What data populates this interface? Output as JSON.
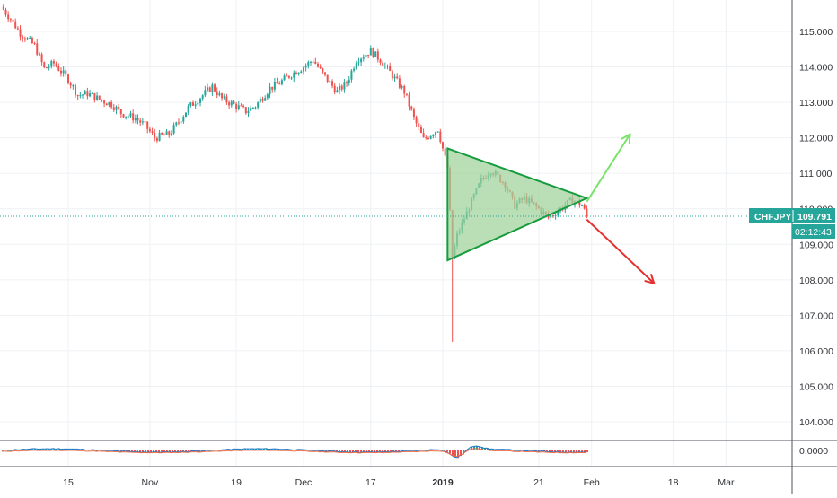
{
  "symbol_label": "CHFJPY",
  "price_label": "109.791",
  "countdown_label": "02:12:43",
  "macd_label": "0.0000",
  "colors": {
    "up": "#26a69a",
    "down": "#ef5350",
    "triangle_fill": "#9fd39a",
    "triangle_stroke": "#169c3e",
    "arrow_up": "#7be36b",
    "arrow_down": "#e3312e",
    "tag_bg": "#26a69a",
    "price_line": "#26a69a",
    "grid": "#eef1f4",
    "axis_text": "#2f3135",
    "macd_line": "#1f78c8",
    "signal_line": "#ef6c45"
  },
  "chart_data": {
    "type": "candlestick",
    "title": "",
    "xlabel": "",
    "ylabel": "",
    "ylim": [
      103.4,
      116.0
    ],
    "y_ticks": [
      "104.000",
      "105.000",
      "106.000",
      "107.000",
      "108.000",
      "109.000",
      "110.000",
      "111.000",
      "112.000",
      "113.000",
      "114.000",
      "115.000"
    ],
    "x_ticks": [
      "15",
      "Nov",
      "19",
      "Dec",
      "17",
      "2019",
      "21",
      "Feb",
      "18",
      "Mar"
    ],
    "x_tick_dates": [
      "2018-10-15",
      "2018-11-01",
      "2018-11-19",
      "2018-12-03",
      "2018-12-17",
      "2019-01-01",
      "2019-01-21",
      "2019-02-01",
      "2019-02-18",
      "2019-03-01"
    ],
    "last_price": 109.791,
    "series": [
      {
        "type": "candlestick",
        "points": [
          [
            "2018-10-01",
            115.7
          ],
          [
            "2018-10-03",
            115.35
          ],
          [
            "2018-10-05",
            114.95
          ],
          [
            "2018-10-08",
            114.6
          ],
          [
            "2018-10-10",
            113.95
          ],
          [
            "2018-10-12",
            114.1
          ],
          [
            "2018-10-15",
            113.65
          ],
          [
            "2018-10-17",
            113.2
          ],
          [
            "2018-10-19",
            113.25
          ],
          [
            "2018-10-22",
            113.05
          ],
          [
            "2018-10-24",
            112.95
          ],
          [
            "2018-10-26",
            112.7
          ],
          [
            "2018-10-29",
            112.55
          ],
          [
            "2018-10-31",
            112.35
          ],
          [
            "2018-11-02",
            112.0
          ],
          [
            "2018-11-05",
            112.1
          ],
          [
            "2018-11-07",
            112.45
          ],
          [
            "2018-11-09",
            112.85
          ],
          [
            "2018-11-12",
            113.2
          ],
          [
            "2018-11-14",
            113.45
          ],
          [
            "2018-11-16",
            113.1
          ],
          [
            "2018-11-19",
            112.9
          ],
          [
            "2018-11-21",
            112.75
          ],
          [
            "2018-11-23",
            112.9
          ],
          [
            "2018-11-26",
            113.4
          ],
          [
            "2018-11-28",
            113.55
          ],
          [
            "2018-11-30",
            113.75
          ],
          [
            "2018-12-03",
            114.0
          ],
          [
            "2018-12-05",
            114.2
          ],
          [
            "2018-12-07",
            113.8
          ],
          [
            "2018-12-10",
            113.3
          ],
          [
            "2018-12-12",
            113.55
          ],
          [
            "2018-12-14",
            114.2
          ],
          [
            "2018-12-17",
            114.45
          ],
          [
            "2018-12-19",
            114.2
          ],
          [
            "2018-12-21",
            113.85
          ],
          [
            "2018-12-24",
            113.3
          ],
          [
            "2018-12-26",
            112.55
          ],
          [
            "2018-12-28",
            111.95
          ],
          [
            "2018-12-31",
            112.25
          ],
          [
            "2019-01-02",
            111.15
          ],
          [
            "2019-01-03",
            108.6
          ],
          [
            "2019-01-04",
            109.25
          ],
          [
            "2019-01-07",
            110.2
          ],
          [
            "2019-01-09",
            110.8
          ],
          [
            "2019-01-11",
            111.1
          ],
          [
            "2019-01-14",
            110.7
          ],
          [
            "2019-01-16",
            110.1
          ],
          [
            "2019-01-18",
            110.3
          ],
          [
            "2019-01-21",
            110.0
          ],
          [
            "2019-01-23",
            109.75
          ],
          [
            "2019-01-25",
            109.95
          ],
          [
            "2019-01-28",
            110.25
          ],
          [
            "2019-01-30",
            110.1
          ],
          [
            "2019-01-31",
            109.79
          ]
        ]
      }
    ],
    "annotations": [
      {
        "type": "triangle",
        "vertices": [
          [
            "2019-01-02",
            111.7
          ],
          [
            "2019-01-31",
            110.3
          ],
          [
            "2019-01-02",
            108.55
          ]
        ]
      },
      {
        "type": "arrow",
        "direction": "up",
        "from": [
          "2019-01-31",
          110.2
        ],
        "to": [
          "2019-02-09",
          112.1
        ]
      },
      {
        "type": "arrow",
        "direction": "down",
        "from": [
          "2019-01-31",
          109.7
        ],
        "to": [
          "2019-02-14",
          107.9
        ]
      }
    ],
    "macd": {
      "ylim": [
        -0.1,
        0.1
      ],
      "tick": "0.0000"
    }
  }
}
